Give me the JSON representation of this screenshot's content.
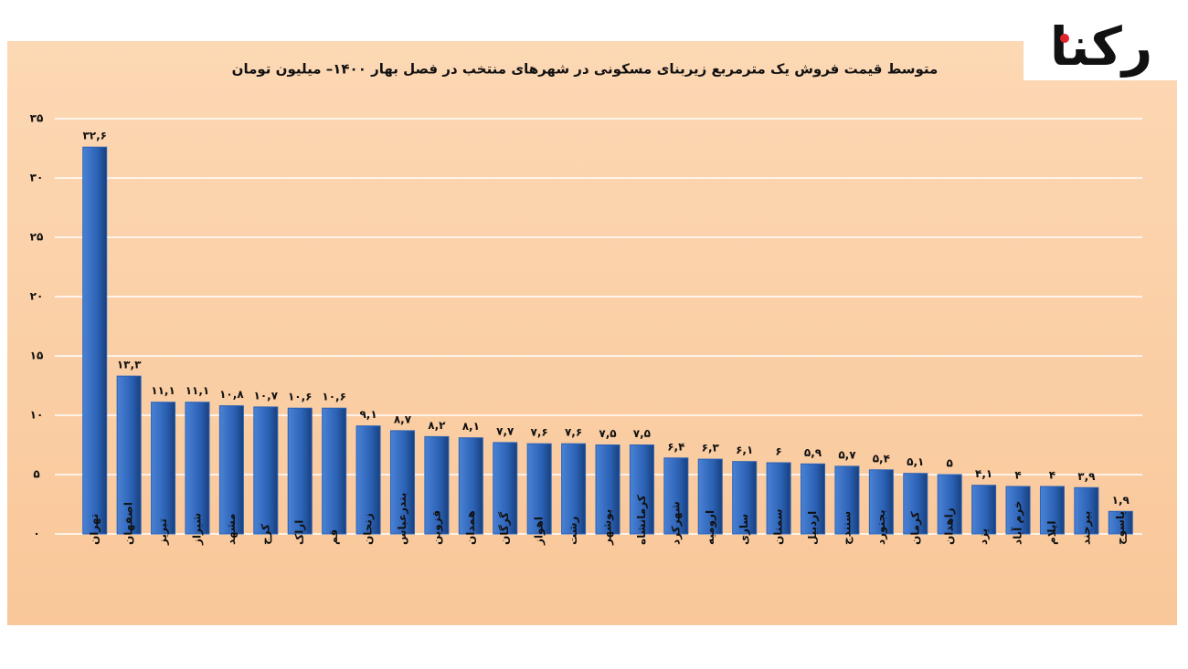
{
  "logo": "رکنا",
  "chart_data": {
    "type": "bar",
    "title": "متوسط قیمت فروش یک مترمربع زیربنای مسکونی در شهرهای منتخب در فصل بهار ۱۴۰۰– میلیون تومان",
    "categories": [
      "تهران",
      "اصفهان",
      "تبریز",
      "شیراز",
      "مشهد",
      "کرج",
      "اراک",
      "قم",
      "زنجان",
      "بندرعباس",
      "قزوین",
      "همدان",
      "گرگان",
      "اهواز",
      "رشت",
      "بوشهر",
      "کرمانشاه",
      "شهرکرد",
      "ارومیه",
      "ساری",
      "سمنان",
      "اردبیل",
      "سنندج",
      "بجنورد",
      "کرمان",
      "زاهدان",
      "یزد",
      "خرم آباد",
      "ایلام",
      "بیرجند",
      "یاسوج"
    ],
    "values": [
      32.6,
      13.3,
      11.1,
      11.1,
      10.8,
      10.7,
      10.6,
      10.6,
      9.1,
      8.7,
      8.2,
      8.1,
      7.7,
      7.6,
      7.6,
      7.5,
      7.5,
      6.4,
      6.3,
      6.1,
      6,
      5.9,
      5.7,
      5.4,
      5.1,
      5,
      4.1,
      4,
      4,
      3.9,
      1.9
    ],
    "value_labels": [
      "۳۲,۶",
      "۱۳,۳",
      "۱۱,۱",
      "۱۱,۱",
      "۱۰,۸",
      "۱۰,۷",
      "۱۰,۶",
      "۱۰,۶",
      "۹,۱",
      "۸,۷",
      "۸,۲",
      "۸,۱",
      "۷,۷",
      "۷,۶",
      "۷,۶",
      "۷,۵",
      "۷,۵",
      "۶,۴",
      "۶,۳",
      "۶,۱",
      "۶",
      "۵,۹",
      "۵,۷",
      "۵,۴",
      "۵,۱",
      "۵",
      "۴,۱",
      "۴",
      "۴",
      "۳,۹",
      "۱,۹"
    ],
    "color": "#2c62b5",
    "ylim": [
      0,
      35
    ],
    "yticks": [
      {
        "value": 0,
        "label": "۰"
      },
      {
        "value": 5,
        "label": "۵"
      },
      {
        "value": 10,
        "label": "۱۰"
      },
      {
        "value": 15,
        "label": "۱۵"
      },
      {
        "value": 20,
        "label": "۲۰"
      },
      {
        "value": 25,
        "label": "۲۵"
      },
      {
        "value": 30,
        "label": "۳۰"
      },
      {
        "value": 35,
        "label": "۳۵"
      }
    ],
    "grid": true
  }
}
